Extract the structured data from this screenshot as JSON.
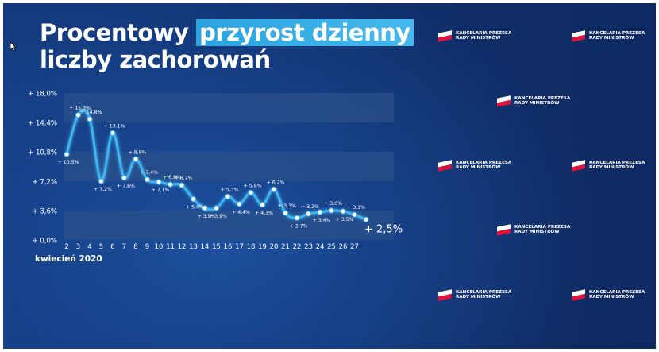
{
  "title": {
    "line1_plain": "Procentowy ",
    "line1_highlight": "przyrost dzienny",
    "line2": "liczby zachorowań"
  },
  "logo": {
    "line1": "KANCELARIA PREZESA",
    "line2": "RADY MINISTRÓW"
  },
  "colors": {
    "background": "#10306c",
    "line": "#3fb4f0",
    "highlight": "#2aa3df",
    "band": "#2a4f8a"
  },
  "chart_data": {
    "type": "line",
    "xlabel": "kwiecień 2020",
    "ylabel": "",
    "ylim": [
      0,
      18
    ],
    "yticks": [
      "+ 0,0%",
      "+ 3,6%",
      "+ 7,2%",
      "+ 10,8%",
      "+ 14,4%",
      "+ 18,0%"
    ],
    "ytick_values": [
      0,
      3.6,
      7.2,
      10.8,
      14.4,
      18.0
    ],
    "x": [
      1,
      2,
      3,
      4,
      5,
      6,
      7,
      8,
      9,
      10,
      11,
      12,
      13,
      14,
      15,
      16,
      17,
      18,
      19,
      20,
      21,
      22,
      23,
      24,
      25,
      26,
      27
    ],
    "xtick_labels": [
      "2",
      "3",
      "4",
      "5",
      "6",
      "7",
      "8",
      "9",
      "10",
      "11",
      "12",
      "13",
      "14",
      "15",
      "16",
      "17",
      "18",
      "19",
      "20",
      "21",
      "22",
      "23",
      "24",
      "25",
      "26",
      "27"
    ],
    "values": [
      10.5,
      15.3,
      14.8,
      7.2,
      13.1,
      7.6,
      9.9,
      7.4,
      7.1,
      6.8,
      6.7,
      5.0,
      3.9,
      3.9,
      5.3,
      4.4,
      5.8,
      4.3,
      6.2,
      3.3,
      2.7,
      3.2,
      3.4,
      3.6,
      3.5,
      3.1,
      2.5
    ],
    "data_labels": [
      "+ 10,5%",
      "+ 15,3%",
      "+ 14,8%",
      "+ 7,2%",
      "+ 13,1%",
      "+ 7,6%",
      "+ 9,9%",
      "+ 7,4%",
      "+ 7,1%",
      "+ 6,8%",
      "+ 6,7%",
      "+ 5,0%",
      "+ 3,9%",
      "+ 3,9%",
      "+ 5,3%",
      "+ 4,4%",
      "+ 5,8%",
      "+ 4,3%",
      "+ 6,2%",
      "+ 3,3%",
      "+ 2,7%",
      "+ 3,2%",
      "+ 3,4%",
      "+ 3,6%",
      "+ 3,5%",
      "+ 3,1%",
      "+ 2,5%"
    ],
    "label_above": [
      false,
      true,
      true,
      false,
      true,
      false,
      true,
      true,
      false,
      true,
      true,
      false,
      false,
      false,
      true,
      false,
      true,
      false,
      true,
      true,
      false,
      true,
      false,
      true,
      false,
      true,
      false
    ],
    "bands": [
      [
        0,
        3.6
      ],
      [
        7.2,
        10.8
      ],
      [
        14.4,
        18.0
      ]
    ],
    "grid": false,
    "legend": "none"
  }
}
